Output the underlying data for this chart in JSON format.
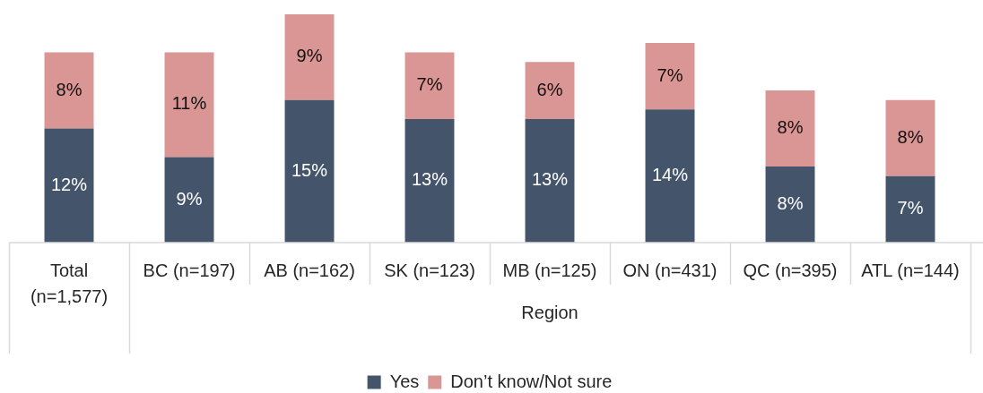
{
  "chart_data": {
    "type": "bar",
    "stacked": true,
    "categories": [
      "Total (n=1,577)",
      "BC (n=197)",
      "AB (n=162)",
      "SK (n=123)",
      "MB (n=125)",
      "ON (n=431)",
      "QC (n=395)",
      "ATL (n=144)"
    ],
    "xlabel": "Region",
    "series": [
      {
        "name": "Yes",
        "color": "#44546a",
        "values": [
          12,
          9,
          15,
          13,
          13,
          14,
          8,
          7
        ],
        "value_labels": [
          "12%",
          "9%",
          "15%",
          "13%",
          "13%",
          "14%",
          "8%",
          "7%"
        ]
      },
      {
        "name": "Don’t know/Not sure",
        "color": "#da9694",
        "values": [
          8,
          11,
          9,
          7,
          6,
          7,
          8,
          8
        ],
        "value_labels": [
          "8%",
          "11%",
          "9%",
          "7%",
          "6%",
          "7%",
          "8%",
          "8%"
        ]
      }
    ],
    "legend": "bottom"
  }
}
